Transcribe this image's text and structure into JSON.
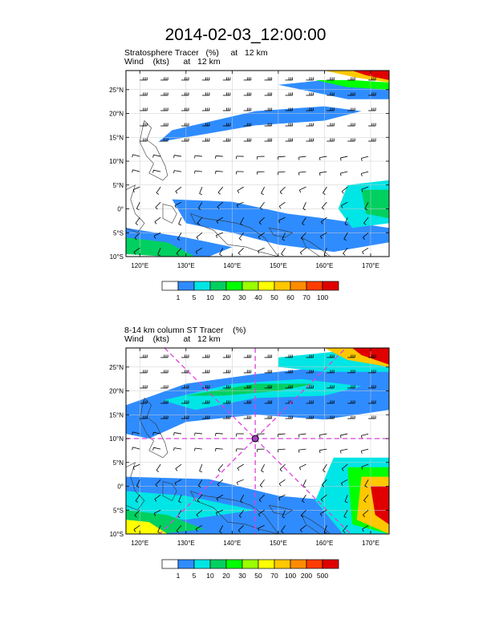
{
  "page": {
    "title": "2014-02-03_12:00:00"
  },
  "panels": [
    {
      "line1": "Stratosphere Tracer   (%)     at   12 km",
      "line2": "Wind    (kts)      at   12 km"
    },
    {
      "line1": "8-14 km column ST Tracer    (%)",
      "line2": "Wind    (kts)      at   12 km"
    }
  ],
  "chart_data": [
    {
      "type": "heatmap",
      "variable": "stratosphere tracer with wind barbs",
      "x_tick_labels": [
        "120°E",
        "130°E",
        "140°E",
        "150°E",
        "160°E",
        "170°E"
      ],
      "x_ticks": [
        120,
        130,
        140,
        150,
        160,
        170
      ],
      "y_tick_labels": [
        "25°N",
        "20°N",
        "15°N",
        "10°N",
        "5°N",
        "0°",
        "5°S",
        "10°S"
      ],
      "y_ticks": [
        25,
        20,
        15,
        10,
        5,
        0,
        -5,
        -10
      ],
      "xlim": [
        117,
        174
      ],
      "ylim": [
        -10,
        29
      ],
      "grid": true,
      "colorbar": {
        "levels": [
          "1",
          "5",
          "10",
          "20",
          "30",
          "40",
          "50",
          "60",
          "70",
          "100"
        ],
        "colors": [
          "#ffffff",
          "#2f8cff",
          "#00e5e5",
          "#00d060",
          "#00ff00",
          "#9aff00",
          "#ffff00",
          "#ffc800",
          "#ff8c00",
          "#ff3c00",
          "#e00000"
        ]
      },
      "regions": [
        {
          "level_index": 1,
          "lon": [
            127,
            145,
            160,
            168,
            160,
            145,
            130,
            124
          ],
          "lat": [
            16.5,
            20.5,
            21.5,
            20.5,
            18.5,
            17.5,
            15,
            14
          ]
        },
        {
          "level_index": 1,
          "lon": [
            127,
            140,
            152,
            160,
            174,
            174,
            162,
            150,
            140,
            130
          ],
          "lat": [
            2,
            1.5,
            -1,
            -2,
            -4,
            -7,
            -9,
            -7.5,
            -5,
            -3
          ]
        },
        {
          "level_index": 1,
          "lon": [
            117,
            130,
            140,
            135,
            125,
            117
          ],
          "lat": [
            -4,
            -6,
            -8,
            -10,
            -10,
            -9
          ]
        },
        {
          "level_index": 2,
          "lon": [
            165,
            174,
            174,
            166,
            163
          ],
          "lat": [
            5,
            6,
            -3,
            -4,
            0
          ]
        },
        {
          "level_index": 3,
          "lon": [
            168,
            174,
            174,
            169
          ],
          "lat": [
            4,
            4,
            -2,
            -1
          ]
        },
        {
          "level_index": 3,
          "lon": [
            117,
            126,
            132,
            126,
            117
          ],
          "lat": [
            -6,
            -7,
            -10,
            -10,
            -9.5
          ]
        },
        {
          "level_index": 1,
          "lon": [
            150,
            160,
            174,
            174,
            165,
            155
          ],
          "lat": [
            26,
            27,
            25.5,
            23,
            23,
            25
          ]
        },
        {
          "level_index": 4,
          "lon": [
            158,
            166,
            174,
            174,
            165
          ],
          "lat": [
            27,
            27,
            26.5,
            25,
            25.5
          ]
        },
        {
          "level_index": 7,
          "lon": [
            160,
            168,
            174,
            174,
            167
          ],
          "lat": [
            29,
            29,
            29,
            26.5,
            27.5
          ]
        },
        {
          "level_index": 10,
          "lon": [
            166,
            170,
            174,
            174,
            169
          ],
          "lat": [
            29,
            29,
            29,
            27,
            28
          ]
        }
      ]
    },
    {
      "type": "heatmap",
      "variable": "8-14 km column ST tracer with wind barbs",
      "x_tick_labels": [
        "120°E",
        "130°E",
        "140°E",
        "150°E",
        "160°E",
        "170°E"
      ],
      "x_ticks": [
        120,
        130,
        140,
        150,
        160,
        170
      ],
      "y_tick_labels": [
        "25°N",
        "20°N",
        "15°N",
        "10°N",
        "5°N",
        "0°",
        "5°S",
        "10°S"
      ],
      "y_ticks": [
        25,
        20,
        15,
        10,
        5,
        0,
        -5,
        -10
      ],
      "xlim": [
        117,
        174
      ],
      "ylim": [
        -10,
        29
      ],
      "grid": true,
      "colorbar": {
        "levels": [
          "1",
          "5",
          "10",
          "20",
          "30",
          "50",
          "70",
          "100",
          "200",
          "500"
        ],
        "colors": [
          "#ffffff",
          "#2f8cff",
          "#00e5e5",
          "#00d060",
          "#00ff00",
          "#9aff00",
          "#ffff00",
          "#ffc800",
          "#ff8c00",
          "#ff3c00",
          "#e00000"
        ]
      },
      "regions": [
        {
          "level_index": 1,
          "lon": [
            117,
            130,
            145,
            160,
            174,
            174,
            160,
            145,
            130,
            122,
            117
          ],
          "lat": [
            17,
            21.5,
            23.5,
            25,
            26,
            16,
            14,
            15,
            13.5,
            10,
            11
          ]
        },
        {
          "level_index": 2,
          "lon": [
            125,
            140,
            155,
            168,
            160,
            145,
            132
          ],
          "lat": [
            18,
            21.5,
            22.5,
            21,
            19,
            18.5,
            16
          ]
        },
        {
          "level_index": 3,
          "lon": [
            130,
            145,
            158,
            150,
            138
          ],
          "lat": [
            19,
            21.5,
            21.5,
            20,
            19
          ]
        },
        {
          "level_index": 1,
          "lon": [
            117,
            135,
            150,
            162,
            174,
            174,
            160,
            140,
            125,
            117
          ],
          "lat": [
            2,
            1.5,
            -2,
            -3,
            -4,
            -10,
            -10,
            -10,
            -10,
            -10
          ]
        },
        {
          "level_index": 2,
          "lon": [
            117,
            130,
            145,
            130,
            117
          ],
          "lat": [
            -1,
            -2,
            -5,
            -7,
            -6
          ]
        },
        {
          "level_index": 3,
          "lon": [
            117,
            126,
            134,
            124,
            117
          ],
          "lat": [
            -5,
            -6,
            -9,
            -10,
            -9.5
          ]
        },
        {
          "level_index": 6,
          "lon": [
            117,
            122,
            126,
            119,
            117
          ],
          "lat": [
            -7,
            -7.5,
            -10,
            -10,
            -10
          ]
        },
        {
          "level_index": 2,
          "lon": [
            162,
            174,
            174,
            164,
            158
          ],
          "lat": [
            6,
            6,
            -10,
            -10,
            -3
          ]
        },
        {
          "level_index": 4,
          "lon": [
            165,
            174,
            174,
            166
          ],
          "lat": [
            4,
            4,
            -10,
            -8
          ]
        },
        {
          "level_index": 7,
          "lon": [
            168,
            174,
            174,
            167
          ],
          "lat": [
            2,
            2,
            -10,
            -7
          ]
        },
        {
          "level_index": 10,
          "lon": [
            170,
            174,
            174,
            171
          ],
          "lat": [
            0,
            0,
            -8,
            -6
          ]
        },
        {
          "level_index": 2,
          "lon": [
            150,
            165,
            174,
            174,
            160,
            150
          ],
          "lat": [
            27,
            28.5,
            29,
            24,
            24,
            25
          ]
        },
        {
          "level_index": 7,
          "lon": [
            160,
            168,
            174,
            174,
            165
          ],
          "lat": [
            29,
            29,
            29,
            25,
            26.5
          ]
        },
        {
          "level_index": 10,
          "lon": [
            166,
            170,
            174,
            174,
            168
          ],
          "lat": [
            29,
            29,
            29,
            25.5,
            27.5
          ]
        }
      ],
      "crosshair": {
        "center_lon": 145,
        "center_lat": 10,
        "color": "#e040e0"
      }
    }
  ]
}
